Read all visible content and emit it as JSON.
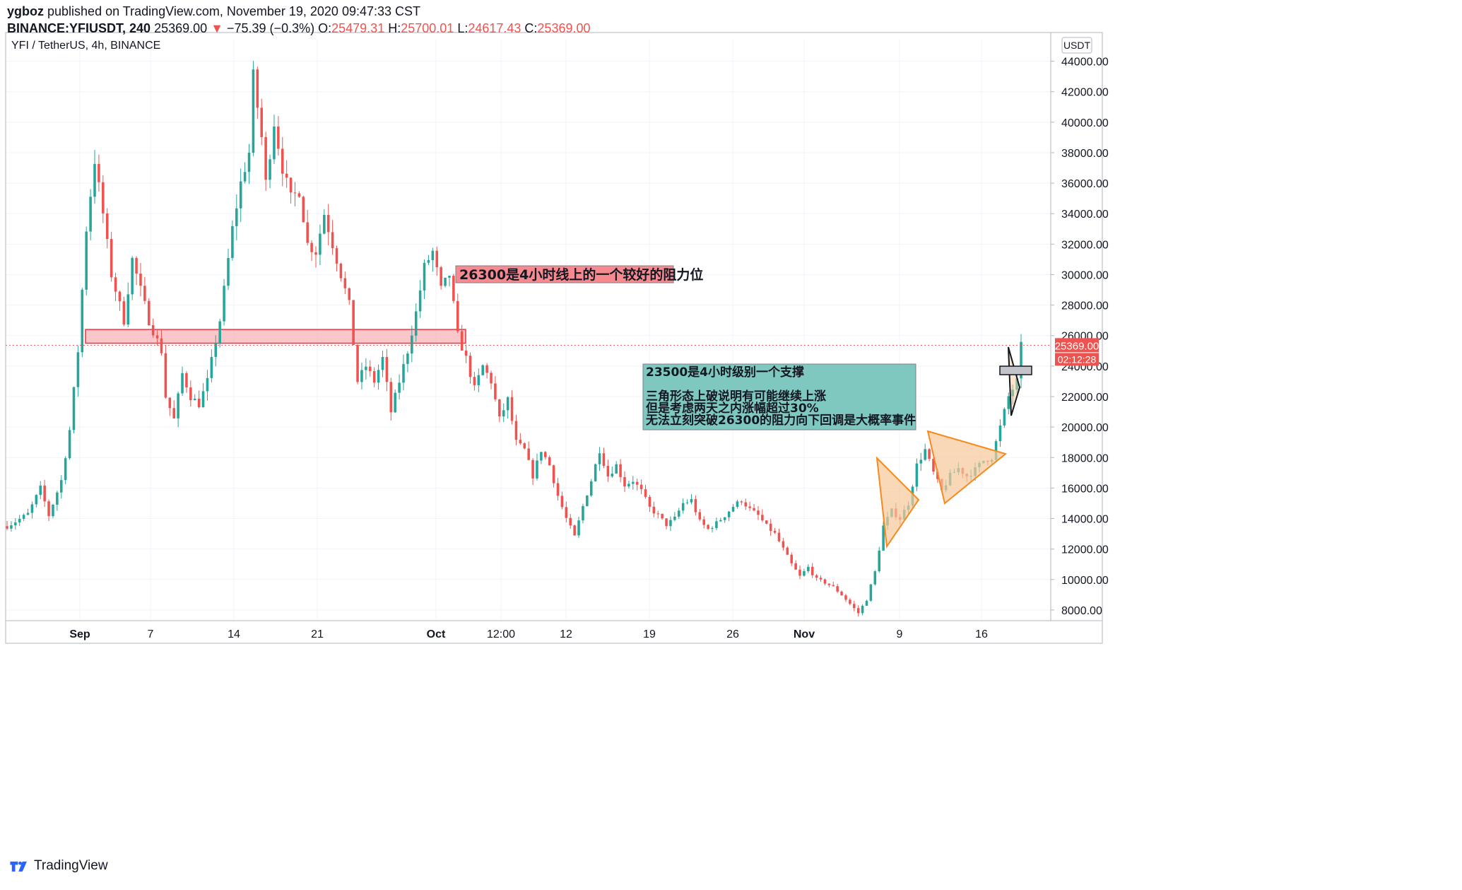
{
  "header": {
    "author": "ygboz",
    "published_text": "published on TradingView.com, November 19, 2020 09:47:33 CST",
    "symbol": "BINANCE:YFIUSDT, 240",
    "last": "25369.00",
    "change_arrow": "▼",
    "change": "−75.39 (−0.3%)",
    "o_label": "O:",
    "o_value": "25479.31",
    "h_label": "H:",
    "h_value": "25700.01",
    "l_label": "L:",
    "l_value": "24617.43",
    "c_label": "C:",
    "c_value": "25369.00"
  },
  "legend": {
    "title": "YFI / TetherUS, 4h, BINANCE"
  },
  "currency_button": "USDT",
  "price_label": {
    "value": "25369.00",
    "countdown": "02:12:28"
  },
  "annotations": {
    "resistance": "26300是4小时线上的一个较好的阻力位",
    "support_lines": [
      "23500是4小时级别一个支撑",
      "",
      "三角形态上破说明有可能继续上涨",
      "但是考虑两天之内涨幅超过30%",
      "无法立刻突破26300的阻力向下回调是大概率事件"
    ]
  },
  "footer": {
    "brand": "TradingView"
  },
  "colors": {
    "up": "#26a69a",
    "down": "#ef5350",
    "grid": "#f0f3fa",
    "resistance_zone": "#f7b3b8",
    "support_box": "#7fc8bf",
    "triangle": "#f7c79a",
    "triangle_stroke": "#f68a1e"
  },
  "chart_data": {
    "type": "candlestick",
    "title": "YFI / TetherUS, 4h, BINANCE",
    "x_tick_labels": [
      "Sep",
      "7",
      "14",
      "21",
      "Oct",
      "12:00",
      "12",
      "19",
      "26",
      "Nov",
      "9",
      "16"
    ],
    "y_tick_labels": [
      "8000.00",
      "10000.00",
      "12000.00",
      "14000.00",
      "16000.00",
      "18000.00",
      "20000.00",
      "22000.00",
      "24000.00",
      "26000.00",
      "28000.00",
      "30000.00",
      "32000.00",
      "34000.00",
      "36000.00",
      "38000.00",
      "40000.00",
      "42000.00",
      "44000.00"
    ],
    "ylim": [
      7300,
      45000
    ],
    "last_price": 25369,
    "resistance_zone": [
      25500,
      26400
    ],
    "support_level": 23200,
    "price_path": [
      [
        0,
        13500
      ],
      [
        2,
        13800
      ],
      [
        5,
        14300
      ],
      [
        8,
        16000
      ],
      [
        10,
        14200
      ],
      [
        13,
        16500
      ],
      [
        15,
        19800
      ],
      [
        17,
        25000
      ],
      [
        19,
        33000
      ],
      [
        21,
        37500
      ],
      [
        23,
        34000
      ],
      [
        25,
        30000
      ],
      [
        28,
        27000
      ],
      [
        30,
        31000
      ],
      [
        32,
        29000
      ],
      [
        34,
        27000
      ],
      [
        37,
        25000
      ],
      [
        38,
        22000
      ],
      [
        40,
        20500
      ],
      [
        42,
        23500
      ],
      [
        44,
        22000
      ],
      [
        46,
        21500
      ],
      [
        48,
        23000
      ],
      [
        51,
        27000
      ],
      [
        54,
        33000
      ],
      [
        56,
        36000
      ],
      [
        58,
        38000
      ],
      [
        59,
        43000
      ],
      [
        61,
        39000
      ],
      [
        62,
        36000
      ],
      [
        64,
        40000
      ],
      [
        66,
        37000
      ],
      [
        68,
        35000
      ],
      [
        70,
        35500
      ],
      [
        72,
        32000
      ],
      [
        74,
        31500
      ],
      [
        76,
        34000
      ],
      [
        78,
        32000
      ],
      [
        80,
        30000
      ],
      [
        82,
        28000
      ],
      [
        84,
        23000
      ],
      [
        86,
        24000
      ],
      [
        88,
        23000
      ],
      [
        90,
        24500
      ],
      [
        92,
        21000
      ],
      [
        94,
        23000
      ],
      [
        96,
        25000
      ],
      [
        98,
        27500
      ],
      [
        100,
        30500
      ],
      [
        102,
        31500
      ],
      [
        104,
        29000
      ],
      [
        106,
        30000
      ],
      [
        108,
        26000
      ],
      [
        110,
        24500
      ],
      [
        112,
        22500
      ],
      [
        114,
        24000
      ],
      [
        116,
        23000
      ],
      [
        118,
        20500
      ],
      [
        120,
        21800
      ],
      [
        122,
        19000
      ],
      [
        124,
        18500
      ],
      [
        126,
        16800
      ],
      [
        128,
        18500
      ],
      [
        130,
        17500
      ],
      [
        132,
        15500
      ],
      [
        134,
        14000
      ],
      [
        136,
        12800
      ],
      [
        138,
        14800
      ],
      [
        140,
        16500
      ],
      [
        142,
        18500
      ],
      [
        144,
        16800
      ],
      [
        146,
        17500
      ],
      [
        148,
        16200
      ],
      [
        150,
        16500
      ],
      [
        152,
        15800
      ],
      [
        154,
        14700
      ],
      [
        156,
        14200
      ],
      [
        158,
        13600
      ],
      [
        160,
        14000
      ],
      [
        162,
        15000
      ],
      [
        164,
        15200
      ],
      [
        166,
        13800
      ],
      [
        168,
        13300
      ],
      [
        170,
        13700
      ],
      [
        172,
        14200
      ],
      [
        174,
        14800
      ],
      [
        176,
        15200
      ],
      [
        178,
        14600
      ],
      [
        180,
        14200
      ],
      [
        182,
        13500
      ],
      [
        184,
        13000
      ],
      [
        186,
        12000
      ],
      [
        188,
        11000
      ],
      [
        190,
        10200
      ],
      [
        192,
        10800
      ],
      [
        194,
        10000
      ],
      [
        196,
        9800
      ],
      [
        198,
        9500
      ],
      [
        200,
        9000
      ],
      [
        202,
        8400
      ],
      [
        204,
        7800
      ],
      [
        206,
        8700
      ],
      [
        208,
        10500
      ],
      [
        210,
        13500
      ],
      [
        212,
        14500
      ],
      [
        214,
        14000
      ],
      [
        216,
        15000
      ],
      [
        218,
        17500
      ],
      [
        220,
        18500
      ],
      [
        222,
        17000
      ],
      [
        224,
        15800
      ],
      [
        226,
        16800
      ],
      [
        228,
        17300
      ],
      [
        230,
        16800
      ],
      [
        232,
        17200
      ],
      [
        234,
        17800
      ],
      [
        236,
        18000
      ],
      [
        238,
        20000
      ],
      [
        240,
        22000
      ],
      [
        242,
        23000
      ],
      [
        243,
        25300
      ]
    ]
  }
}
